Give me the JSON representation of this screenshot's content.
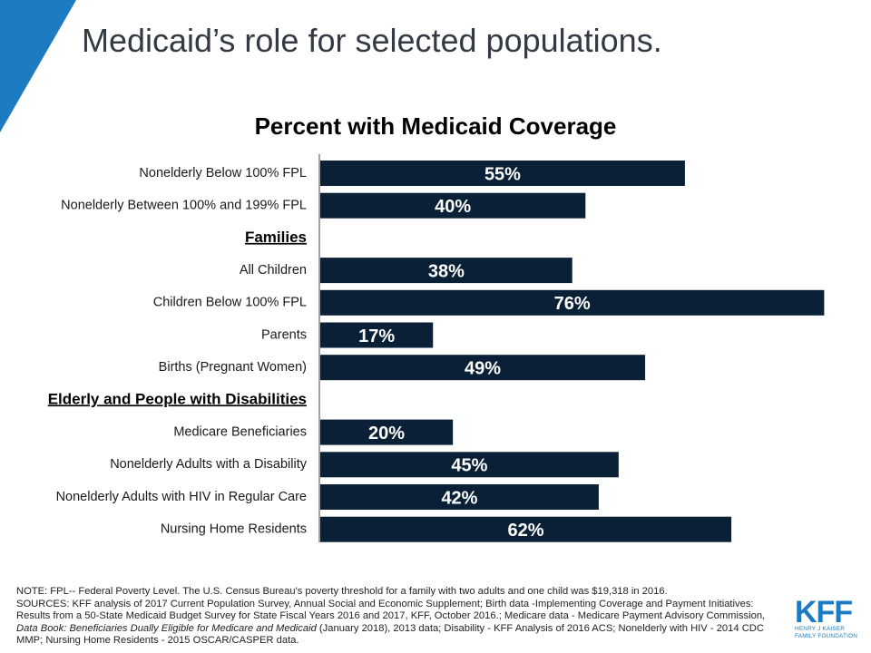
{
  "slide_title": "Medicaid’s role for selected populations.",
  "colors": {
    "bar": "#0a2037",
    "corner": "#1c7bc1",
    "logo": "#1c7bc1"
  },
  "chart_data": {
    "type": "bar",
    "orientation": "horizontal",
    "title": "Percent with Medicaid Coverage",
    "xlim": [
      0,
      78
    ],
    "grid": false,
    "legend": "none",
    "rows": [
      {
        "kind": "bar",
        "label": "Nonelderly Below 100% FPL",
        "value": 55,
        "value_label": "55%"
      },
      {
        "kind": "bar",
        "label": "Nonelderly Between 100% and 199% FPL",
        "value": 40,
        "value_label": "40%"
      },
      {
        "kind": "group",
        "label": "Families"
      },
      {
        "kind": "bar",
        "label": "All Children",
        "value": 38,
        "value_label": "38%"
      },
      {
        "kind": "bar",
        "label": "Children Below 100% FPL",
        "value": 76,
        "value_label": "76%"
      },
      {
        "kind": "bar",
        "label": "Parents",
        "value": 17,
        "value_label": "17%"
      },
      {
        "kind": "bar",
        "label": "Births (Pregnant Women)",
        "value": 49,
        "value_label": "49%"
      },
      {
        "kind": "group",
        "label": "Elderly and People with Disabilities"
      },
      {
        "kind": "bar",
        "label": "Medicare Beneficiaries",
        "value": 20,
        "value_label": "20%"
      },
      {
        "kind": "bar",
        "label": "Nonelderly Adults with a Disability",
        "value": 45,
        "value_label": "45%"
      },
      {
        "kind": "bar",
        "label": "Nonelderly Adults with HIV in Regular Care",
        "value": 42,
        "value_label": "42%"
      },
      {
        "kind": "bar",
        "label": "Nursing Home Residents",
        "value": 62,
        "value_label": "62%"
      }
    ]
  },
  "notes": {
    "note": "NOTE: FPL-- Federal Poverty Level. The U.S. Census Bureau's poverty threshold for a family with two adults and one child was $19,318 in 2016.",
    "sources_part1": "SOURCES: KFF analysis of 2017 Current Population Survey, Annual Social and Economic Supplement; Birth data -Implementing Coverage and Payment Initiatives: Results from a 50-State Medicaid Budget Survey for State Fiscal Years 2016 and 2017, KFF, October 2016.; Medicare data - Medicare Payment Advisory Commission, ",
    "sources_italic": "Data Book: Beneficiaries Dually Eligible for Medicare and Medicaid",
    "sources_part2": " (January 2018), 2013 data; Disability - KFF Analysis of 2016 ACS; Nonelderly with HIV - 2014 CDC MMP;  Nursing Home Residents - 2015 OSCAR/CASPER data."
  },
  "logo": {
    "mark": "KFF",
    "line1": "HENRY J KAISER",
    "line2": "FAMILY FOUNDATION"
  }
}
